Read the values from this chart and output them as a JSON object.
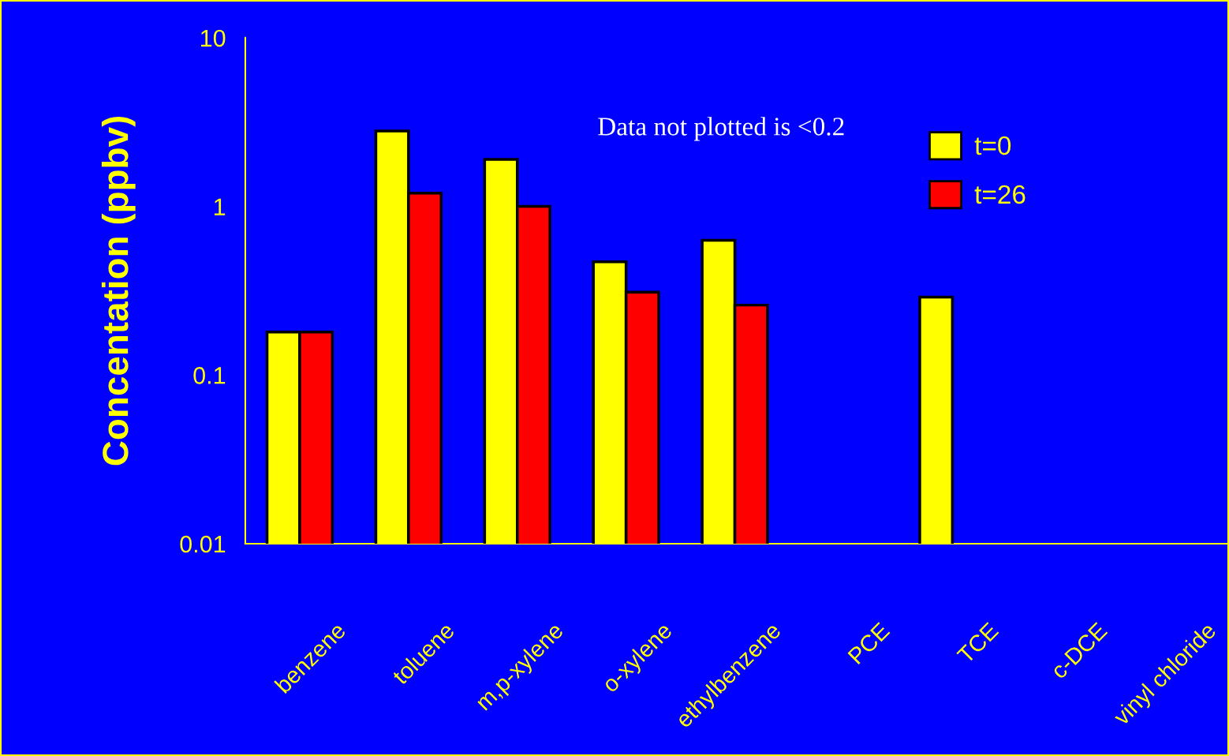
{
  "chart_data": {
    "type": "bar",
    "ylabel": "Concentation (ppbv)",
    "log": true,
    "categories": [
      "benzene",
      "toluene",
      "m,p-xylene",
      "o-xylene",
      "ethylbenzene",
      "PCE",
      "TCE",
      "c-DCE",
      "vinyl chloride"
    ],
    "series": [
      {
        "name": "t=0",
        "color": "#ffff00",
        "values": [
          0.18,
          2.8,
          1.9,
          0.47,
          0.63,
          null,
          0.29,
          null,
          null
        ]
      },
      {
        "name": "t=26",
        "color": "#ff0000",
        "values": [
          0.18,
          1.2,
          1.0,
          0.31,
          0.26,
          null,
          null,
          null,
          null
        ]
      }
    ],
    "ylim": [
      0.01,
      10
    ],
    "yticks": [
      0.01,
      0.1,
      1,
      10
    ],
    "annotations": [
      "Data not plotted is <0.2"
    ],
    "legend": "top right"
  }
}
